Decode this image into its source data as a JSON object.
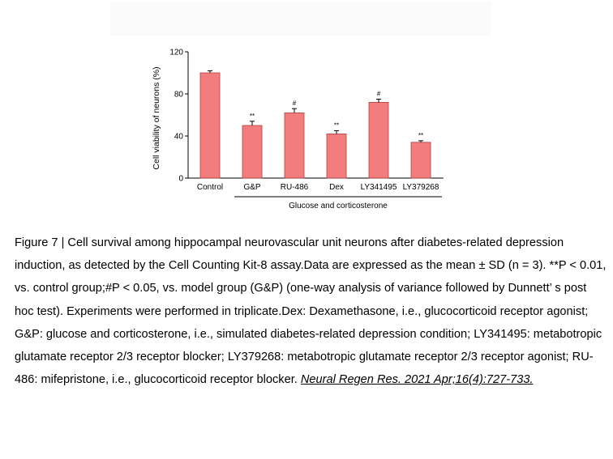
{
  "chart_data": {
    "type": "bar",
    "categories": [
      "Control",
      "G&P",
      "RU-486",
      "Dex",
      "LY341495",
      "LY379268"
    ],
    "values": [
      100,
      50,
      62,
      42,
      72,
      34
    ],
    "errors": [
      2,
      4,
      4,
      3,
      3,
      1.5
    ],
    "annotations": [
      "",
      "**",
      "#",
      "**",
      "#",
      "**"
    ],
    "ylabel": "Cell viability of neurons (%)",
    "xlabel": "Glucose and corticosterone",
    "ylim": [
      0,
      120
    ],
    "yticks": [
      0,
      40,
      80,
      120
    ],
    "bar_color": "#f37d7d",
    "grid": false
  },
  "caption": {
    "text": "Figure 7 | Cell survival among hippocampal neurovascular unit neurons after diabetes-related depression induction, as detected by the Cell Counting Kit-8 assay.Data are expressed as the mean ± SD (n = 3). **P < 0.01, vs. control group;#P < 0.05, vs. model group (G&P) (one-way analysis of variance followed by Dunnett’ s post hoc test). Experiments were performed in triplicate.Dex: Dexamethasone, i.e., glucocorticoid receptor agonist; G&P: glucose and corticosterone, i.e., simulated diabetes-related depression condition; LY341495: metabotropic glutamate receptor 2/3 receptor blocker; LY379268: metabotropic glutamate receptor 2/3 receptor agonist; RU-486: mifepristone, i.e., glucocorticoid receptor blocker. ",
    "citation": "Neural Regen Res. 2021 Apr;16(4):727-733."
  }
}
